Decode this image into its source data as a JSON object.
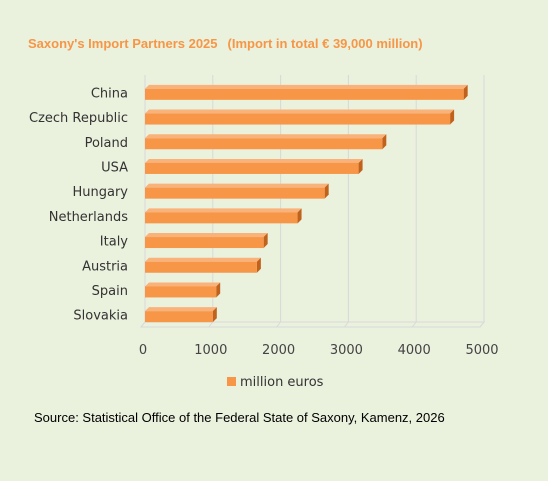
{
  "chart_data": {
    "type": "bar",
    "orientation": "horizontal",
    "title": "Saxony's Import Partners 2025",
    "subtitle": "(Import in total € 39,000 million)",
    "categories": [
      "China",
      "Czech Republic",
      "Poland",
      "USA",
      "Hungary",
      "Netherlands",
      "Italy",
      "Austria",
      "Spain",
      "Slovakia"
    ],
    "series": [
      {
        "name": "million euros",
        "values": [
          4700,
          4500,
          3500,
          3150,
          2650,
          2250,
          1750,
          1650,
          1050,
          1000
        ]
      }
    ],
    "xlim": [
      0,
      5000
    ],
    "xticks": [
      "0",
      "1000",
      "2000",
      "3000",
      "4000",
      "5000"
    ],
    "grid": "vertical",
    "legend": "bottom"
  },
  "colors": {
    "background": "#eaf1dd",
    "bar": "#f79646",
    "bar_side": "#c0621b",
    "title": "#f79646",
    "grid": "#d9d9d9"
  },
  "source": "Source: Statistical Office of the Federal State of Saxony, Kamenz, 2026"
}
